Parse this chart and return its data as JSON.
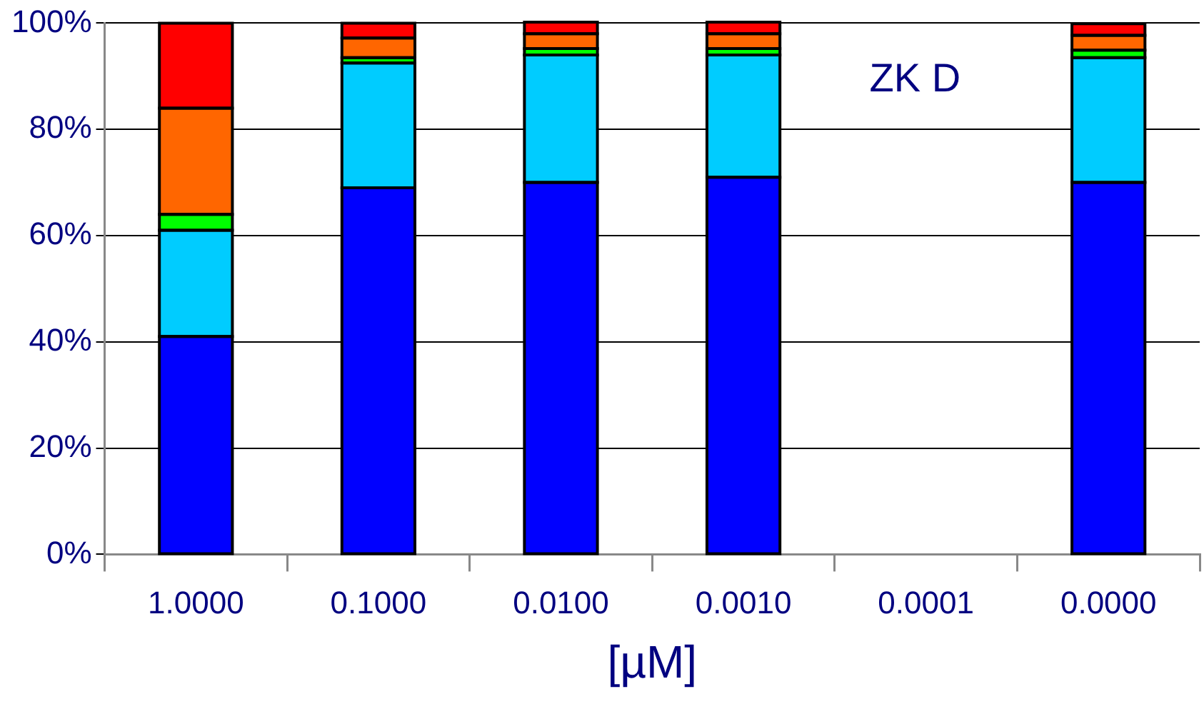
{
  "chart_data": {
    "type": "bar",
    "stacked": true,
    "xlabel": "[µM]",
    "annotations": [
      "ZK D"
    ],
    "categories": [
      "1.0000",
      "0.1000",
      "0.0100",
      "0.0010",
      "0.0001",
      "0.0000"
    ],
    "series": [
      {
        "color": "#0000ff",
        "values": [
          41,
          69,
          70,
          71,
          null,
          70
        ]
      },
      {
        "color": "#00ccff",
        "values": [
          20,
          23.5,
          24,
          23,
          null,
          23.5
        ]
      },
      {
        "color": "#00ff00",
        "values": [
          3,
          1,
          1.2,
          1.2,
          null,
          1.4
        ]
      },
      {
        "color": "#ff6600",
        "values": [
          20,
          3.7,
          2.8,
          2.8,
          null,
          2.8
        ]
      },
      {
        "color": "#ff0000",
        "values": [
          16,
          2.8,
          2.2,
          2.2,
          null,
          2.2
        ]
      }
    ],
    "ylim": [
      0,
      100
    ],
    "yticks": [
      {
        "value": 0,
        "label": "0%"
      },
      {
        "value": 20,
        "label": "20%"
      },
      {
        "value": 40,
        "label": "40%"
      },
      {
        "value": 60,
        "label": "60%"
      },
      {
        "value": 80,
        "label": "80%"
      },
      {
        "value": 100,
        "label": "100%"
      }
    ],
    "grid": "y",
    "legend": false
  }
}
